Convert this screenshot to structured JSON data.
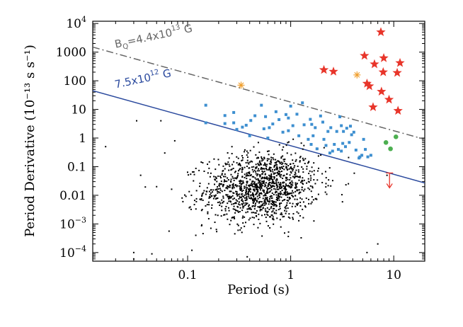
{
  "chart_data": {
    "type": "scatter",
    "xlabel": "Period (s)",
    "ylabel": "Period Derivative (10⁻¹³ s s⁻¹)",
    "x_scale": "log",
    "y_scale": "log",
    "xlim": [
      0.012,
      20
    ],
    "ylim": [
      5e-05,
      12000
    ],
    "x_ticks": [
      {
        "value": 0.1,
        "label": "0.1"
      },
      {
        "value": 1,
        "label": "1"
      },
      {
        "value": 10,
        "label": "10"
      }
    ],
    "y_ticks": [
      {
        "value": 10000,
        "base": "10",
        "exp": "4"
      },
      {
        "value": 1000,
        "label": "1000"
      },
      {
        "value": 100,
        "label": "100"
      },
      {
        "value": 10,
        "label": "10"
      },
      {
        "value": 1,
        "label": "1"
      },
      {
        "value": 0.1,
        "label": "0.1"
      },
      {
        "value": 0.01,
        "label": "0.01"
      },
      {
        "value": 0.001,
        "base": "10",
        "exp": "−3"
      },
      {
        "value": 0.0001,
        "base": "10",
        "exp": "−4"
      }
    ],
    "lines": [
      {
        "label": "B_Q=4.4x10^13 G",
        "style": "dashdot",
        "color": "#666666",
        "p": [
          0.012,
          20
        ],
        "pdot": [
          1500,
          0.9
        ]
      },
      {
        "label": "7.5x10^12 G",
        "style": "solid",
        "color": "#2b4a9e",
        "p": [
          0.012,
          20
        ],
        "pdot": [
          45,
          0.027
        ]
      }
    ],
    "annotations": [
      {
        "prefix": "B",
        "sub": "Q",
        "mid": "=4.4x10",
        "sup": "13",
        "suffix": " G",
        "color": "#666666",
        "x": 0.02,
        "y": 1400
      },
      {
        "prefix": "7.5x10",
        "sup": "12",
        "suffix": " G",
        "color": "#2b4a9e",
        "x": 0.02,
        "y": 55
      }
    ],
    "series": [
      {
        "marker": "star",
        "color": "#e8352a",
        "points": [
          [
            7.5,
            5000
          ],
          [
            5.2,
            750
          ],
          [
            8.0,
            620
          ],
          [
            11.5,
            420
          ],
          [
            6.5,
            380
          ],
          [
            2.1,
            240
          ],
          [
            2.6,
            210
          ],
          [
            7.9,
            200
          ],
          [
            10.8,
            190
          ],
          [
            5.5,
            80
          ],
          [
            5.8,
            65
          ],
          [
            7.6,
            42
          ],
          [
            9.0,
            22
          ],
          [
            6.3,
            12
          ],
          [
            11.0,
            9
          ]
        ]
      },
      {
        "marker": "asterisk",
        "color": "#f0a030",
        "points": [
          [
            0.33,
            70
          ],
          [
            4.4,
            160
          ]
        ]
      },
      {
        "marker": "circle",
        "color": "#4caf50",
        "points": [
          [
            8.4,
            0.7
          ],
          [
            10.5,
            1.1
          ],
          [
            9.3,
            0.42
          ]
        ]
      },
      {
        "marker": "square",
        "color": "#3d8fd0",
        "points": [
          [
            0.15,
            14
          ],
          [
            0.15,
            3.4
          ],
          [
            0.23,
            6.1
          ],
          [
            0.23,
            3.2
          ],
          [
            0.28,
            7.8
          ],
          [
            0.28,
            3.4
          ],
          [
            0.3,
            2.0
          ],
          [
            0.34,
            2.4
          ],
          [
            0.37,
            2.8
          ],
          [
            0.41,
            4.1
          ],
          [
            0.45,
            6.0
          ],
          [
            0.52,
            14
          ],
          [
            0.55,
            2.1
          ],
          [
            0.57,
            5.6
          ],
          [
            0.6,
            1.0
          ],
          [
            0.62,
            2.3
          ],
          [
            0.67,
            3.1
          ],
          [
            0.72,
            8.3
          ],
          [
            0.77,
            4.4
          ],
          [
            0.84,
            1.6
          ],
          [
            0.9,
            6.6
          ],
          [
            0.95,
            1.8
          ],
          [
            1.0,
            13
          ],
          [
            1.05,
            2.7
          ],
          [
            1.15,
            6.8
          ],
          [
            1.2,
            1.2
          ],
          [
            1.3,
            17
          ],
          [
            1.35,
            2.9
          ],
          [
            1.48,
            0.9
          ],
          [
            1.55,
            4.5
          ],
          [
            1.58,
            0.6
          ],
          [
            1.65,
            1.2
          ],
          [
            1.73,
            2.3
          ],
          [
            1.8,
            0.42
          ],
          [
            1.95,
            5.9
          ],
          [
            2.05,
            3.6
          ],
          [
            2.1,
            0.9
          ],
          [
            2.2,
            0.55
          ],
          [
            2.3,
            1.7
          ],
          [
            2.45,
            2.3
          ],
          [
            2.55,
            0.35
          ],
          [
            2.65,
            0.6
          ],
          [
            2.8,
            1.7
          ],
          [
            2.9,
            0.4
          ],
          [
            3.0,
            5.5
          ],
          [
            3.1,
            2.7
          ],
          [
            3.2,
            0.65
          ],
          [
            3.25,
            1.7
          ],
          [
            3.4,
            0.5
          ],
          [
            3.5,
            2.2
          ],
          [
            3.7,
            0.7
          ],
          [
            3.9,
            1.3
          ],
          [
            4.1,
            1.6
          ],
          [
            4.3,
            0.38
          ],
          [
            4.6,
            0.2
          ],
          [
            4.9,
            0.25
          ],
          [
            5.1,
            0.9
          ],
          [
            5.3,
            0.4
          ],
          [
            5.6,
            0.22
          ],
          [
            6.0,
            0.25
          ],
          [
            3.1,
            0.35
          ],
          [
            0.4,
            1.2
          ],
          [
            0.95,
            5.0
          ],
          [
            1.6,
            3.0
          ],
          [
            2.4,
            0.3
          ],
          [
            3.8,
            2.6
          ],
          [
            4.7,
            0.22
          ]
        ]
      },
      {
        "marker": "dot",
        "color": "#000000",
        "points": "generated distribution of ~1300 radio pulsars (not individually labeled)"
      }
    ],
    "limit_marker": {
      "x": 9.1,
      "y": 0.06,
      "color": "#e8352a",
      "direction": "down"
    },
    "grid": false,
    "legend": "none"
  }
}
